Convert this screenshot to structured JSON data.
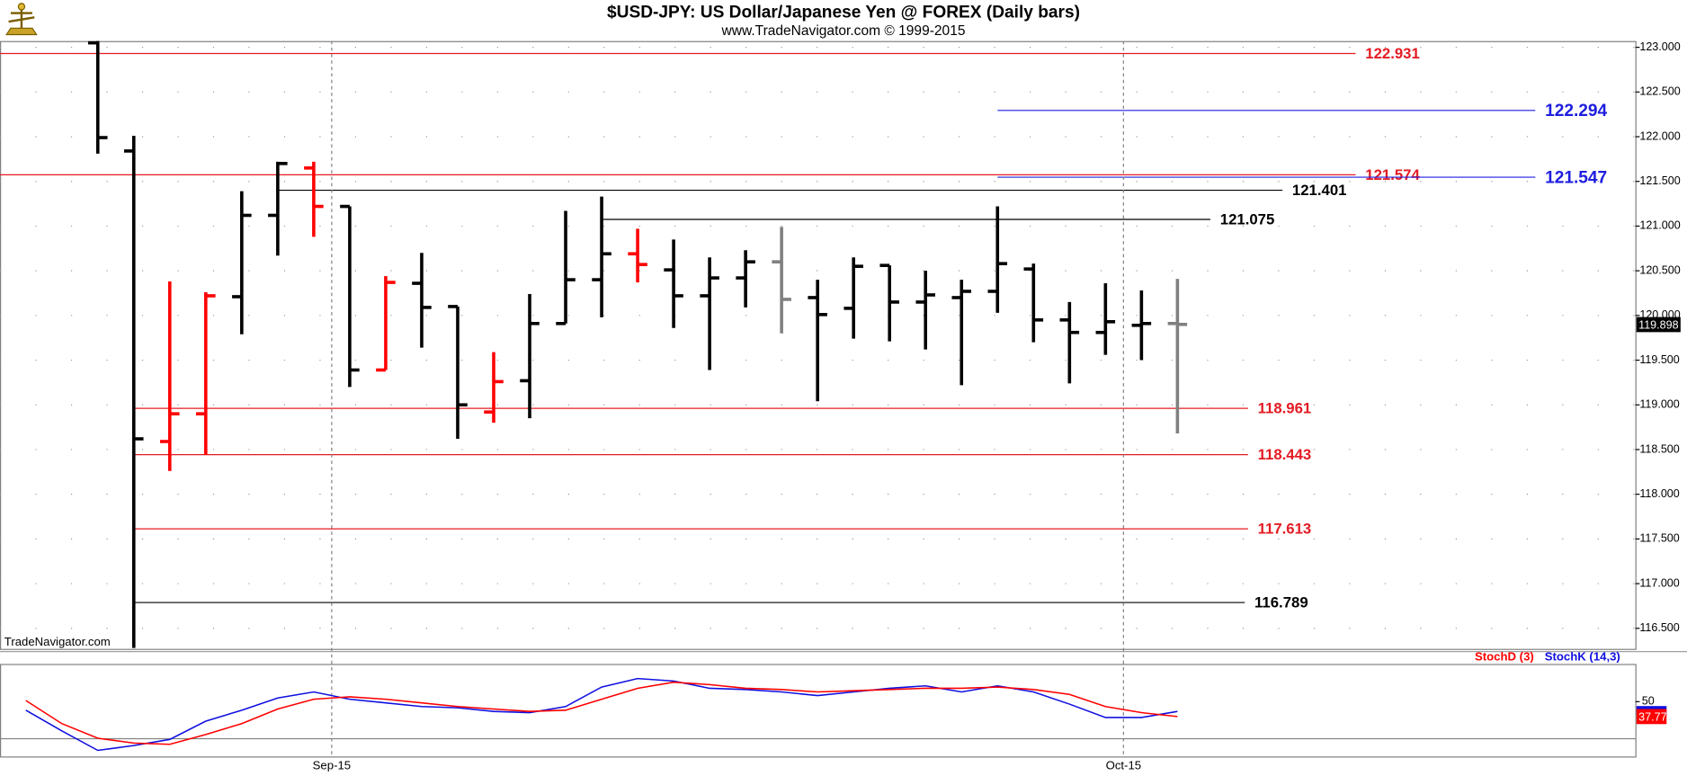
{
  "chart_data": [
    {
      "type": "ohlc",
      "title": "$USD-JPY:  US Dollar/Japanese Yen @ FOREX  (Daily bars)",
      "subtitle": "www.TradeNavigator.com © 1999-2015",
      "watermark": "TradeNavigator.com",
      "categories": [
        null,
        null,
        null,
        null,
        null,
        null,
        null,
        null,
        null,
        null,
        null,
        null,
        null,
        null,
        null,
        null,
        null,
        null,
        null,
        null,
        null,
        null,
        null,
        null,
        null,
        null,
        null,
        null,
        null,
        null,
        null,
        null,
        null
      ],
      "open": [
        null,
        null,
        123.05,
        121.84,
        118.59,
        118.9,
        120.21,
        121.12,
        121.65,
        121.22,
        119.39,
        120.36,
        120.1,
        118.92,
        119.27,
        119.91,
        120.4,
        120.69,
        120.51,
        120.22,
        120.42,
        120.6,
        120.2,
        120.08,
        120.56,
        120.15,
        120.2,
        120.27,
        120.52,
        119.95,
        119.81,
        119.89,
        119.91
      ],
      "high": [
        null,
        null,
        123.07,
        122.01,
        120.38,
        120.26,
        121.39,
        121.72,
        121.72,
        121.22,
        120.44,
        120.7,
        120.1,
        119.59,
        120.24,
        121.17,
        121.33,
        120.97,
        120.85,
        120.65,
        120.73,
        120.99,
        120.4,
        120.65,
        120.56,
        120.5,
        120.4,
        121.22,
        120.58,
        120.15,
        120.36,
        120.28,
        120.41
      ],
      "low": [
        null,
        null,
        121.81,
        116.28,
        118.26,
        118.44,
        119.79,
        120.67,
        120.88,
        119.2,
        119.39,
        119.64,
        118.62,
        118.8,
        118.85,
        119.91,
        119.98,
        120.37,
        119.86,
        119.39,
        120.09,
        119.8,
        119.04,
        119.74,
        119.71,
        119.62,
        119.22,
        120.03,
        119.7,
        119.24,
        119.56,
        119.5,
        118.68
      ],
      "close": [
        null,
        null,
        121.99,
        118.62,
        118.9,
        120.22,
        121.12,
        121.7,
        121.22,
        119.39,
        120.37,
        120.09,
        119.0,
        119.26,
        119.91,
        120.4,
        120.69,
        120.57,
        120.22,
        120.42,
        120.6,
        120.18,
        120.01,
        120.55,
        120.15,
        120.23,
        120.27,
        120.58,
        119.95,
        119.81,
        119.93,
        119.91,
        119.9
      ],
      "colors": [
        null,
        null,
        "#000000",
        "#000000",
        "#ff0000",
        "#ff0000",
        "#000000",
        "#000000",
        "#ff0000",
        "#000000",
        "#ff0000",
        "#000000",
        "#000000",
        "#ff0000",
        "#000000",
        "#000000",
        "#000000",
        "#ff0000",
        "#000000",
        "#000000",
        "#000000",
        "#808080",
        "#000000",
        "#000000",
        "#000000",
        "#000000",
        "#000000",
        "#000000",
        "#000000",
        "#000000",
        "#000000",
        "#000000",
        "#808080"
      ],
      "levels": [
        {
          "value": 122.931,
          "color": "#e31b23",
          "start": null
        },
        {
          "value": 122.294,
          "color": "#1d1de0",
          "start": 27
        },
        {
          "value": 121.574,
          "color": "#e31b23",
          "start": null
        },
        {
          "value": 121.547,
          "color": "#1d1de0",
          "start": 27
        },
        {
          "value": 121.401,
          "color": "#000000",
          "start": 7
        },
        {
          "value": 121.075,
          "color": "#000000",
          "start": 16
        },
        {
          "value": 118.961,
          "color": "#e31b23",
          "start": 3
        },
        {
          "value": 118.443,
          "color": "#e31b23",
          "start": 3
        },
        {
          "value": 117.613,
          "color": "#e31b23",
          "start": 3
        },
        {
          "value": 116.789,
          "color": "#000000",
          "start": 3
        }
      ],
      "last": 119.898,
      "ylim": [
        116.27,
        123.07
      ],
      "yticks": [
        {
          "value": 116.5,
          "label": "116.500"
        },
        {
          "value": 117,
          "label": "117.000"
        },
        {
          "value": 117.5,
          "label": "117.500"
        },
        {
          "value": 118,
          "label": "118.000"
        },
        {
          "value": 118.5,
          "label": "118.500"
        },
        {
          "value": 119,
          "label": "119.000"
        },
        {
          "value": 119.5,
          "label": "119.500"
        },
        {
          "value": 120,
          "label": "120.000"
        },
        {
          "value": 120.5,
          "label": "120.500"
        },
        {
          "value": 121,
          "label": "121.000"
        },
        {
          "value": 121.5,
          "label": "121.500"
        },
        {
          "value": 122,
          "label": "122.000"
        },
        {
          "value": 122.5,
          "label": "122.500"
        },
        {
          "value": 123,
          "label": "123.000"
        }
      ],
      "grid": true
    },
    {
      "type": "line",
      "series": [
        {
          "name": "StochD (3)",
          "color": "#ff0000",
          "values": [
            51,
            32,
            20,
            16,
            15,
            23,
            32,
            44,
            52,
            54,
            52,
            49,
            46,
            44,
            42,
            43,
            52,
            61,
            66,
            64,
            61,
            60,
            58,
            59,
            60,
            61,
            61,
            62,
            60,
            56,
            46,
            41,
            37.77
          ]
        },
        {
          "name": "StochK (14,3)",
          "color": "#1010e0",
          "values": [
            43,
            26,
            10,
            14,
            19,
            34,
            43,
            53,
            58,
            52,
            49,
            46,
            45,
            42,
            41,
            46,
            62,
            69,
            67,
            61,
            60,
            58,
            55,
            58,
            61,
            63,
            58,
            63,
            58,
            48,
            37,
            37,
            42
          ]
        }
      ],
      "ylim": [
        5,
        81
      ],
      "yticks": [
        50
      ],
      "xticks": [
        {
          "value": 8.5,
          "label": "Sep-15"
        },
        {
          "value": 30.5,
          "label": "Oct-15"
        }
      ]
    }
  ]
}
